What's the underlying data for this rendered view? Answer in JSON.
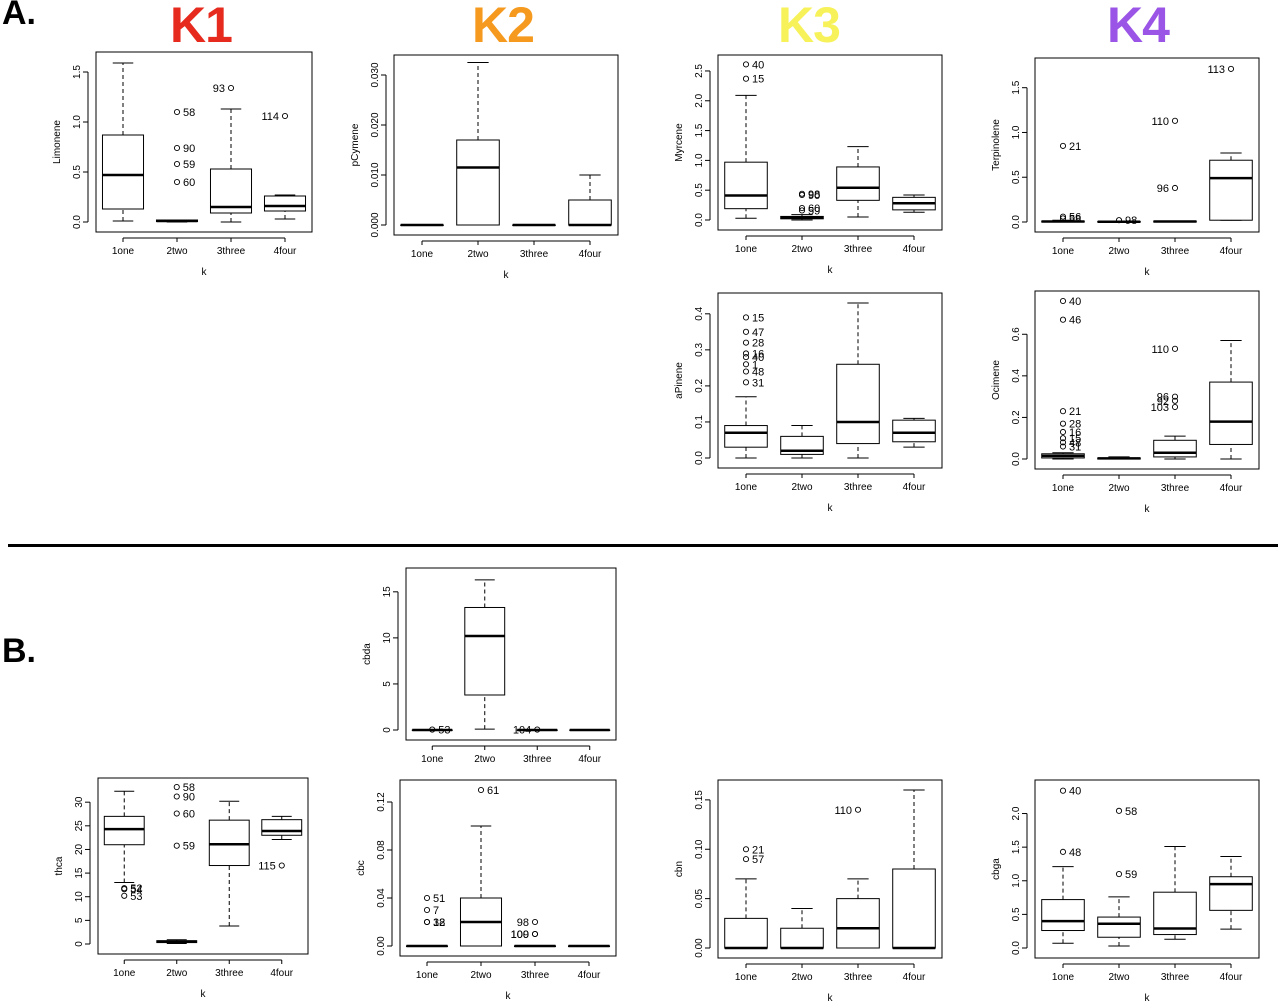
{
  "sections": {
    "a": "A.",
    "b": "B."
  },
  "cluster_titles": [
    {
      "label": "K1",
      "color": "#e62b1e"
    },
    {
      "label": "K2",
      "color": "#f59a1e"
    },
    {
      "label": "K3",
      "color": "#f7f25a"
    },
    {
      "label": "K4",
      "color": "#9b55e6"
    }
  ],
  "chart_data": [
    {
      "id": "limonene",
      "type": "boxplot",
      "xlabel": "k",
      "ylabel": "Limonene",
      "categories": [
        "1one",
        "2two",
        "3three",
        "4four"
      ],
      "ylim": [
        0,
        1.6
      ],
      "yticks": [
        0,
        0.5,
        1.0,
        1.5
      ],
      "ytick_labels": [
        "0.0",
        "0.5",
        "1.0",
        "1.5"
      ],
      "boxes": [
        {
          "wlo": 0.01,
          "q1": 0.13,
          "med": 0.47,
          "q3": 0.87,
          "whi": 1.59
        },
        {
          "wlo": 0.0,
          "q1": 0.005,
          "med": 0.01,
          "q3": 0.02,
          "whi": 0.02
        },
        {
          "wlo": 0.0,
          "q1": 0.09,
          "med": 0.15,
          "q3": 0.53,
          "whi": 1.13
        },
        {
          "wlo": 0.03,
          "q1": 0.11,
          "med": 0.16,
          "q3": 0.26,
          "whi": 0.27
        }
      ],
      "outliers": [
        {
          "cat": 1,
          "y": 1.1,
          "label": "58",
          "side": "right"
        },
        {
          "cat": 1,
          "y": 0.74,
          "label": "90",
          "side": "right"
        },
        {
          "cat": 1,
          "y": 0.58,
          "label": "59",
          "side": "right"
        },
        {
          "cat": 1,
          "y": 0.4,
          "label": "60",
          "side": "right"
        },
        {
          "cat": 2,
          "y": 1.34,
          "label": "93",
          "side": "left"
        },
        {
          "cat": 3,
          "y": 1.06,
          "label": "114",
          "side": "left"
        }
      ]
    },
    {
      "id": "pcymene",
      "type": "boxplot",
      "xlabel": "k",
      "ylabel": "pCymene",
      "categories": [
        "1one",
        "2two",
        "3three",
        "4four"
      ],
      "ylim": [
        0,
        0.032
      ],
      "yticks": [
        0,
        0.01,
        0.02,
        0.03
      ],
      "ytick_labels": [
        "0.000",
        "0.010",
        "0.020",
        "0.030"
      ],
      "boxes": [
        {
          "wlo": 0,
          "q1": 0,
          "med": 0,
          "q3": 0,
          "whi": 0
        },
        {
          "wlo": 0,
          "q1": 0,
          "med": 0.0115,
          "q3": 0.017,
          "whi": 0.0325
        },
        {
          "wlo": 0,
          "q1": 0,
          "med": 0,
          "q3": 0,
          "whi": 0
        },
        {
          "wlo": 0,
          "q1": 0,
          "med": 0,
          "q3": 0.005,
          "whi": 0.01
        }
      ],
      "outliers": []
    },
    {
      "id": "myrcene",
      "type": "boxplot",
      "xlabel": "k",
      "ylabel": "Myrcene",
      "categories": [
        "1one",
        "2two",
        "3three",
        "4four"
      ],
      "ylim": [
        0,
        2.6
      ],
      "yticks": [
        0,
        0.5,
        1.0,
        1.5,
        2.0,
        2.5
      ],
      "ytick_labels": [
        "0.0",
        "0.5",
        "1.0",
        "1.5",
        "2.0",
        "2.5"
      ],
      "boxes": [
        {
          "wlo": 0.03,
          "q1": 0.19,
          "med": 0.41,
          "q3": 0.97,
          "whi": 2.09
        },
        {
          "wlo": 0.0,
          "q1": 0.02,
          "med": 0.04,
          "q3": 0.06,
          "whi": 0.09
        },
        {
          "wlo": 0.05,
          "q1": 0.33,
          "med": 0.54,
          "q3": 0.89,
          "whi": 1.23
        },
        {
          "wlo": 0.13,
          "q1": 0.17,
          "med": 0.28,
          "q3": 0.38,
          "whi": 0.42
        }
      ],
      "outliers": [
        {
          "cat": 0,
          "y": 2.61,
          "label": "40",
          "side": "right"
        },
        {
          "cat": 0,
          "y": 2.37,
          "label": "15",
          "side": "right"
        },
        {
          "cat": 1,
          "y": 0.44,
          "label": "98",
          "side": "right"
        },
        {
          "cat": 1,
          "y": 0.42,
          "label": "90",
          "side": "right"
        },
        {
          "cat": 1,
          "y": 0.2,
          "label": "60",
          "side": "right"
        },
        {
          "cat": 1,
          "y": 0.16,
          "label": "59",
          "side": "right"
        }
      ]
    },
    {
      "id": "terpinolene",
      "type": "boxplot",
      "xlabel": "k",
      "ylabel": "Terpinolene",
      "categories": [
        "1one",
        "2two",
        "3three",
        "4four"
      ],
      "ylim": [
        0,
        1.72
      ],
      "yticks": [
        0,
        0.5,
        1.0,
        1.5
      ],
      "ytick_labels": [
        "0.0",
        "0.5",
        "1.0",
        "1.5"
      ],
      "boxes": [
        {
          "wlo": 0,
          "q1": 0,
          "med": 0.005,
          "q3": 0.01,
          "whi": 0.02
        },
        {
          "wlo": 0,
          "q1": 0,
          "med": 0.003,
          "q3": 0.005,
          "whi": 0.01
        },
        {
          "wlo": 0,
          "q1": 0,
          "med": 0.005,
          "q3": 0.01,
          "whi": 0.01
        },
        {
          "wlo": 0.02,
          "q1": 0.02,
          "med": 0.49,
          "q3": 0.69,
          "whi": 0.77
        }
      ],
      "outliers": [
        {
          "cat": 0,
          "y": 0.85,
          "label": "21",
          "side": "right"
        },
        {
          "cat": 0,
          "y": 0.06,
          "label": "56",
          "side": "right"
        },
        {
          "cat": 0,
          "y": 0.04,
          "label": "58",
          "side": "right"
        },
        {
          "cat": 1,
          "y": 0.02,
          "label": "98",
          "side": "right"
        },
        {
          "cat": 2,
          "y": 1.13,
          "label": "110",
          "side": "left"
        },
        {
          "cat": 2,
          "y": 0.38,
          "label": "96",
          "side": "left"
        },
        {
          "cat": 3,
          "y": 1.71,
          "label": "113",
          "side": "left"
        }
      ]
    },
    {
      "id": "apinene",
      "type": "boxplot",
      "xlabel": "k",
      "ylabel": "aPinene",
      "categories": [
        "1one",
        "2two",
        "3three",
        "4four"
      ],
      "ylim": [
        0,
        0.43
      ],
      "yticks": [
        0,
        0.1,
        0.2,
        0.3,
        0.4
      ],
      "ytick_labels": [
        "0.0",
        "0.1",
        "0.2",
        "0.3",
        "0.4"
      ],
      "boxes": [
        {
          "wlo": 0.0,
          "q1": 0.03,
          "med": 0.07,
          "q3": 0.09,
          "whi": 0.17
        },
        {
          "wlo": 0.0,
          "q1": 0.01,
          "med": 0.02,
          "q3": 0.06,
          "whi": 0.09
        },
        {
          "wlo": 0.0,
          "q1": 0.04,
          "med": 0.1,
          "q3": 0.26,
          "whi": 0.43
        },
        {
          "wlo": 0.03,
          "q1": 0.045,
          "med": 0.07,
          "q3": 0.105,
          "whi": 0.11
        }
      ],
      "outliers": [
        {
          "cat": 0,
          "y": 0.39,
          "label": "15",
          "side": "right"
        },
        {
          "cat": 0,
          "y": 0.35,
          "label": "47",
          "side": "right"
        },
        {
          "cat": 0,
          "y": 0.32,
          "label": "28",
          "side": "right"
        },
        {
          "cat": 0,
          "y": 0.29,
          "label": "16",
          "side": "right"
        },
        {
          "cat": 0,
          "y": 0.28,
          "label": "40",
          "side": "right"
        },
        {
          "cat": 0,
          "y": 0.26,
          "label": "1",
          "side": "right"
        },
        {
          "cat": 0,
          "y": 0.24,
          "label": "48",
          "side": "right"
        },
        {
          "cat": 0,
          "y": 0.21,
          "label": "31",
          "side": "right"
        }
      ]
    },
    {
      "id": "ocimene",
      "type": "boxplot",
      "xlabel": "k",
      "ylabel": "Ocimene",
      "categories": [
        "1one",
        "2two",
        "3three",
        "4four"
      ],
      "ylim": [
        0,
        0.76
      ],
      "yticks": [
        0,
        0.2,
        0.4,
        0.6
      ],
      "ytick_labels": [
        "0.0",
        "0.2",
        "0.4",
        "0.6"
      ],
      "boxes": [
        {
          "wlo": 0,
          "q1": 0.005,
          "med": 0.015,
          "q3": 0.025,
          "whi": 0.03
        },
        {
          "wlo": 0,
          "q1": 0.0,
          "med": 0.003,
          "q3": 0.005,
          "whi": 0.01
        },
        {
          "wlo": 0,
          "q1": 0.01,
          "med": 0.03,
          "q3": 0.09,
          "whi": 0.11
        },
        {
          "wlo": 0,
          "q1": 0.07,
          "med": 0.18,
          "q3": 0.37,
          "whi": 0.57
        }
      ],
      "outliers": [
        {
          "cat": 0,
          "y": 0.76,
          "label": "40",
          "side": "right"
        },
        {
          "cat": 0,
          "y": 0.67,
          "label": "46",
          "side": "right"
        },
        {
          "cat": 0,
          "y": 0.23,
          "label": "21",
          "side": "right"
        },
        {
          "cat": 0,
          "y": 0.17,
          "label": "28",
          "side": "right"
        },
        {
          "cat": 0,
          "y": 0.13,
          "label": "16",
          "side": "right"
        },
        {
          "cat": 0,
          "y": 0.1,
          "label": "15",
          "side": "right"
        },
        {
          "cat": 0,
          "y": 0.08,
          "label": "48",
          "side": "right"
        },
        {
          "cat": 0,
          "y": 0.06,
          "label": "31",
          "side": "right"
        },
        {
          "cat": 2,
          "y": 0.53,
          "label": "110",
          "side": "left"
        },
        {
          "cat": 2,
          "y": 0.3,
          "label": "96",
          "side": "left"
        },
        {
          "cat": 2,
          "y": 0.28,
          "label": "92",
          "side": "left"
        },
        {
          "cat": 2,
          "y": 0.25,
          "label": "103",
          "side": "left"
        }
      ]
    },
    {
      "id": "cbda",
      "type": "boxplot",
      "xlabel": "",
      "ylabel": "cbda",
      "categories": [
        "1one",
        "2two",
        "3three",
        "4four"
      ],
      "ylim": [
        0,
        16.5
      ],
      "yticks": [
        0,
        5,
        10,
        15
      ],
      "ytick_labels": [
        "0",
        "5",
        "10",
        "15"
      ],
      "boxes": [
        {
          "wlo": 0,
          "q1": 0,
          "med": 0,
          "q3": 0,
          "whi": 0
        },
        {
          "wlo": 0.1,
          "q1": 3.8,
          "med": 10.2,
          "q3": 13.3,
          "whi": 16.3
        },
        {
          "wlo": 0,
          "q1": 0,
          "med": 0,
          "q3": 0,
          "whi": 0
        },
        {
          "wlo": 0,
          "q1": 0,
          "med": 0,
          "q3": 0,
          "whi": 0
        }
      ],
      "outliers": [
        {
          "cat": 0,
          "y": 0.05,
          "label": "53",
          "side": "right"
        },
        {
          "cat": 2,
          "y": 0.05,
          "label": "104",
          "side": "left"
        }
      ]
    },
    {
      "id": "thca",
      "type": "boxplot",
      "xlabel": "k",
      "ylabel": "thca",
      "categories": [
        "1one",
        "2two",
        "3three",
        "4four"
      ],
      "ylim": [
        0,
        33
      ],
      "yticks": [
        0,
        5,
        10,
        15,
        20,
        25,
        30
      ],
      "ytick_labels": [
        "0",
        "5",
        "10",
        "15",
        "20",
        "25",
        "30"
      ],
      "boxes": [
        {
          "wlo": 13,
          "q1": 21,
          "med": 24.3,
          "q3": 27,
          "whi": 32.3
        },
        {
          "wlo": 0.1,
          "q1": 0.3,
          "med": 0.5,
          "q3": 0.7,
          "whi": 0.9
        },
        {
          "wlo": 3.8,
          "q1": 16.6,
          "med": 21.1,
          "q3": 26.2,
          "whi": 30.2
        },
        {
          "wlo": 22.1,
          "q1": 23.0,
          "med": 23.9,
          "q3": 26.3,
          "whi": 27.0
        }
      ],
      "outliers": [
        {
          "cat": 0,
          "y": 11.8,
          "label": "52",
          "side": "right"
        },
        {
          "cat": 0,
          "y": 11.6,
          "label": "54",
          "side": "right"
        },
        {
          "cat": 0,
          "y": 10.2,
          "label": "53",
          "side": "right"
        },
        {
          "cat": 1,
          "y": 33.2,
          "label": "58",
          "side": "right"
        },
        {
          "cat": 1,
          "y": 31.2,
          "label": "90",
          "side": "right"
        },
        {
          "cat": 1,
          "y": 27.6,
          "label": "60",
          "side": "right"
        },
        {
          "cat": 1,
          "y": 20.8,
          "label": "59",
          "side": "right"
        },
        {
          "cat": 3,
          "y": 16.6,
          "label": "115",
          "side": "left"
        }
      ]
    },
    {
      "id": "cbc",
      "type": "boxplot",
      "xlabel": "k",
      "ylabel": "cbc",
      "categories": [
        "1one",
        "2two",
        "3three",
        "4four"
      ],
      "ylim": [
        0,
        0.13
      ],
      "yticks": [
        0,
        0.04,
        0.08,
        0.12
      ],
      "ytick_labels": [
        "0.00",
        "0.04",
        "0.08",
        "0.12"
      ],
      "boxes": [
        {
          "wlo": 0,
          "q1": 0,
          "med": 0,
          "q3": 0,
          "whi": 0
        },
        {
          "wlo": 0,
          "q1": 0,
          "med": 0.02,
          "q3": 0.04,
          "whi": 0.1
        },
        {
          "wlo": 0,
          "q1": 0,
          "med": 0,
          "q3": 0,
          "whi": 0
        },
        {
          "wlo": 0,
          "q1": 0,
          "med": 0,
          "q3": 0,
          "whi": 0
        }
      ],
      "outliers": [
        {
          "cat": 0,
          "y": 0.04,
          "label": "51",
          "side": "right"
        },
        {
          "cat": 0,
          "y": 0.03,
          "label": "7",
          "side": "right"
        },
        {
          "cat": 0,
          "y": 0.02,
          "label": "38",
          "side": "right"
        },
        {
          "cat": 0,
          "y": 0.02,
          "label": "12",
          "side": "right"
        },
        {
          "cat": 1,
          "y": 0.13,
          "label": "61",
          "side": "right"
        },
        {
          "cat": 2,
          "y": 0.02,
          "label": "98",
          "side": "left"
        },
        {
          "cat": 2,
          "y": 0.01,
          "label": "109",
          "side": "left"
        },
        {
          "cat": 2,
          "y": 0.01,
          "label": "100",
          "side": "left"
        }
      ]
    },
    {
      "id": "cbn",
      "type": "boxplot",
      "xlabel": "k",
      "ylabel": "cbn",
      "categories": [
        "1one",
        "2two",
        "3three",
        "4four"
      ],
      "ylim": [
        0,
        0.16
      ],
      "yticks": [
        0,
        0.05,
        0.1,
        0.15
      ],
      "ytick_labels": [
        "0.00",
        "0.05",
        "0.10",
        "0.15"
      ],
      "boxes": [
        {
          "wlo": 0,
          "q1": 0,
          "med": 0,
          "q3": 0.03,
          "whi": 0.07
        },
        {
          "wlo": 0,
          "q1": 0,
          "med": 0,
          "q3": 0.02,
          "whi": 0.04
        },
        {
          "wlo": 0,
          "q1": 0,
          "med": 0.02,
          "q3": 0.05,
          "whi": 0.07
        },
        {
          "wlo": 0,
          "q1": 0,
          "med": 0,
          "q3": 0.08,
          "whi": 0.16
        }
      ],
      "outliers": [
        {
          "cat": 0,
          "y": 0.1,
          "label": "21",
          "side": "right"
        },
        {
          "cat": 0,
          "y": 0.09,
          "label": "57",
          "side": "right"
        },
        {
          "cat": 2,
          "y": 0.14,
          "label": "110",
          "side": "left"
        }
      ]
    },
    {
      "id": "cbga",
      "type": "boxplot",
      "xlabel": "k",
      "ylabel": "cbga",
      "categories": [
        "1one",
        "2two",
        "3three",
        "4four"
      ],
      "ylim": [
        0,
        2.35
      ],
      "yticks": [
        0,
        0.5,
        1.0,
        1.5,
        2.0
      ],
      "ytick_labels": [
        "0.0",
        "0.5",
        "1.0",
        "1.5",
        "2.0"
      ],
      "boxes": [
        {
          "wlo": 0.07,
          "q1": 0.26,
          "med": 0.4,
          "q3": 0.72,
          "whi": 1.21
        },
        {
          "wlo": 0.03,
          "q1": 0.16,
          "med": 0.36,
          "q3": 0.46,
          "whi": 0.76
        },
        {
          "wlo": 0.13,
          "q1": 0.2,
          "med": 0.29,
          "q3": 0.83,
          "whi": 1.51
        },
        {
          "wlo": 0.28,
          "q1": 0.56,
          "med": 0.95,
          "q3": 1.06,
          "whi": 1.36
        }
      ],
      "outliers": [
        {
          "cat": 0,
          "y": 2.34,
          "label": "40",
          "side": "right"
        },
        {
          "cat": 0,
          "y": 1.43,
          "label": "48",
          "side": "right"
        },
        {
          "cat": 1,
          "y": 2.04,
          "label": "58",
          "side": "right"
        },
        {
          "cat": 1,
          "y": 1.1,
          "label": "59",
          "side": "right"
        }
      ]
    }
  ]
}
